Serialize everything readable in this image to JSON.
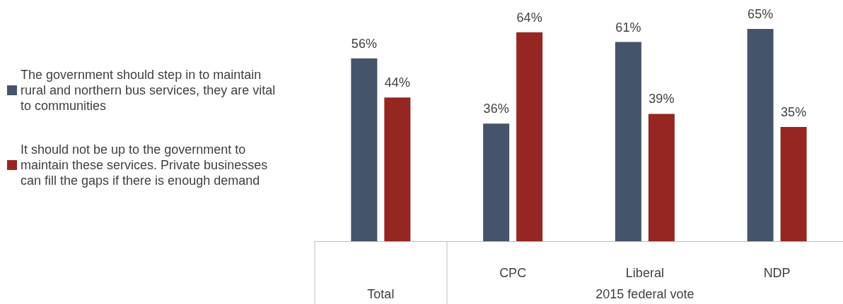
{
  "chart_data": {
    "type": "bar",
    "categories": [
      null,
      "CPC",
      "Liberal",
      "NDP"
    ],
    "series": [
      {
        "name": "The government should step in to maintain rural and northern bus services, they are vital to communities",
        "color": "#44546a",
        "values": [
          56,
          36,
          61,
          65
        ],
        "value_labels": [
          "56%",
          "36%",
          "61%",
          "65%"
        ]
      },
      {
        "name": "It should not be up to the government to maintain these services. Private businesses can fill the gaps if there is enough demand",
        "color": "#952622",
        "values": [
          44,
          64,
          39,
          35
        ],
        "value_labels": [
          "44%",
          "64%",
          "39%",
          "35%"
        ]
      }
    ],
    "legend": "left",
    "annotations": [
      "Total",
      "2015 federal vote"
    ]
  }
}
